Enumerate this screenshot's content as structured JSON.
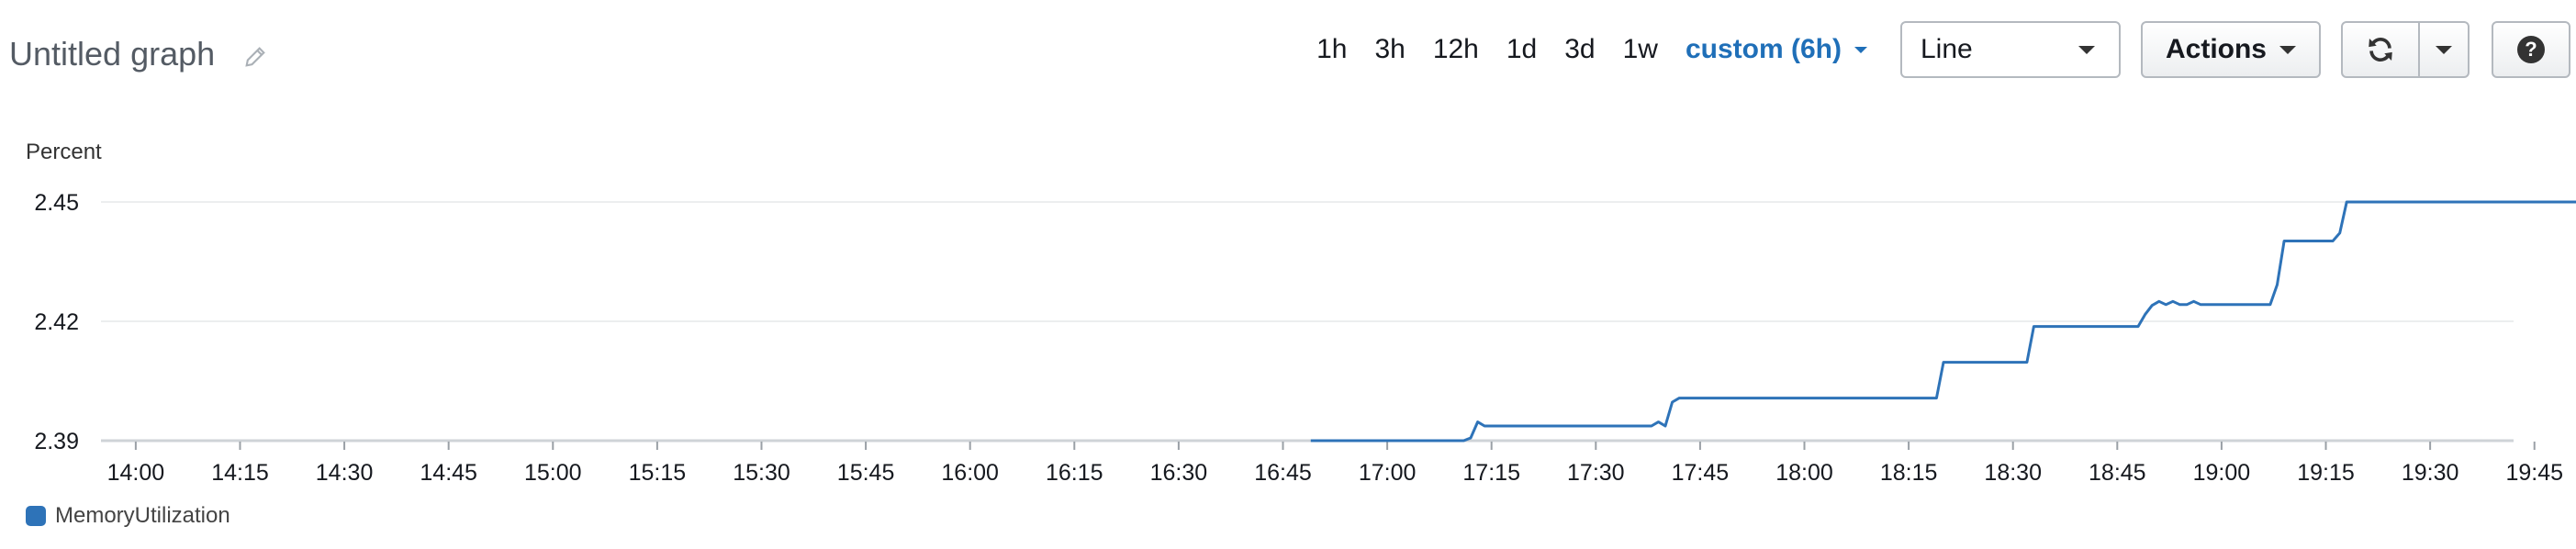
{
  "header": {
    "title": "Untitled graph",
    "edit_icon": "pencil-icon"
  },
  "toolbar": {
    "ranges": [
      "1h",
      "3h",
      "12h",
      "1d",
      "3d",
      "1w"
    ],
    "custom_range": "custom (6h)",
    "graph_type": "Line",
    "actions_label": "Actions",
    "refresh_icon": "refresh-icon",
    "help_icon": "help-icon",
    "help_glyph": "?"
  },
  "chart_data": {
    "type": "line",
    "title": "",
    "ylabel": "Percent",
    "xlabel": "",
    "ylim": [
      2.39,
      2.45
    ],
    "yticks": [
      "2.45",
      "2.42",
      "2.39"
    ],
    "x_tick_labels": [
      "14:00",
      "14:15",
      "14:30",
      "14:45",
      "15:00",
      "15:15",
      "15:30",
      "15:45",
      "16:00",
      "16:15",
      "16:30",
      "16:45",
      "17:00",
      "17:15",
      "17:30",
      "17:45",
      "18:00",
      "18:15",
      "18:30",
      "18:45",
      "19:00",
      "19:15",
      "19:30",
      "19:45"
    ],
    "x_range_minutes": [
      835,
      1182
    ],
    "grid": true,
    "legend_position": "bottom-left",
    "series": [
      {
        "name": "MemoryUtilization",
        "color": "#2e73b8",
        "points": [
          [
            "16:49",
            2.39
          ],
          [
            "17:11",
            2.39
          ],
          [
            "17:12",
            2.3907
          ],
          [
            "17:13",
            2.3947
          ],
          [
            "17:14",
            2.3937
          ],
          [
            "17:38",
            2.3937
          ],
          [
            "17:39",
            2.3947
          ],
          [
            "17:40",
            2.3937
          ],
          [
            "17:41",
            2.3997
          ],
          [
            "17:42",
            2.4007
          ],
          [
            "18:19",
            2.4007
          ],
          [
            "18:20",
            2.4097
          ],
          [
            "18:32",
            2.4097
          ],
          [
            "18:33",
            2.4187
          ],
          [
            "18:48",
            2.4187
          ],
          [
            "18:49",
            2.4217
          ],
          [
            "18:50",
            2.424
          ],
          [
            "18:51",
            2.425
          ],
          [
            "18:52",
            2.4242
          ],
          [
            "18:53",
            2.425
          ],
          [
            "18:54",
            2.4242
          ],
          [
            "18:55",
            2.4242
          ],
          [
            "18:56",
            2.425
          ],
          [
            "18:57",
            2.4242
          ],
          [
            "19:07",
            2.4242
          ],
          [
            "19:08",
            2.4292
          ],
          [
            "19:09",
            2.4402
          ],
          [
            "19:16",
            2.4402
          ],
          [
            "19:17",
            2.4422
          ],
          [
            "19:18",
            2.45
          ],
          [
            "19:52",
            2.45
          ]
        ]
      }
    ]
  }
}
